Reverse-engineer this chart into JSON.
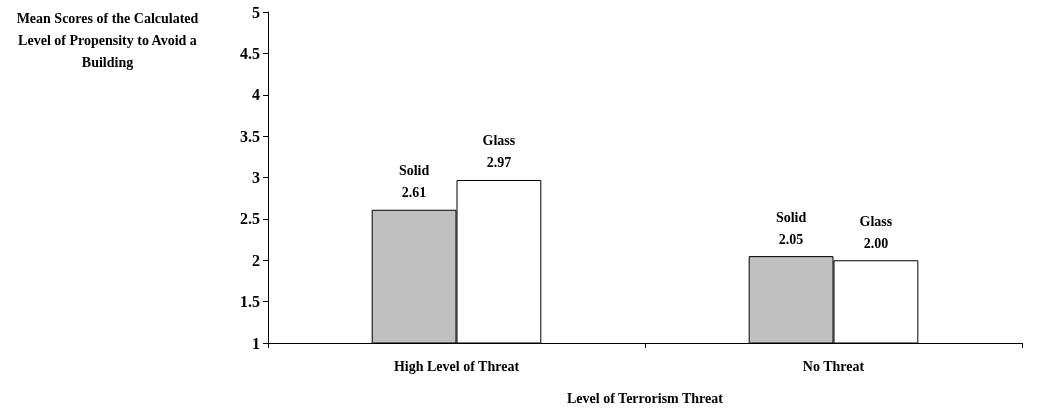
{
  "chart_data": {
    "type": "bar",
    "ylabel": "Mean Scores of the Calculated Level of Propensity to Avoid a Building",
    "xlabel": "Level of Terrorism Threat",
    "categories": [
      "High Level of Threat",
      "No Threat"
    ],
    "series": [
      {
        "name": "Solid",
        "color": "#c0c0c0",
        "values": [
          2.61,
          2.05
        ],
        "value_labels": [
          "2.61",
          "2.05"
        ]
      },
      {
        "name": "Glass",
        "color": "#ffffff",
        "values": [
          2.97,
          2.0
        ],
        "value_labels": [
          "2.97",
          "2.00"
        ]
      }
    ],
    "ylim": [
      1,
      5
    ],
    "yticks": [
      1,
      1.5,
      2,
      2.5,
      3,
      3.5,
      4,
      4.5,
      5
    ],
    "grid": false,
    "legend": false
  }
}
